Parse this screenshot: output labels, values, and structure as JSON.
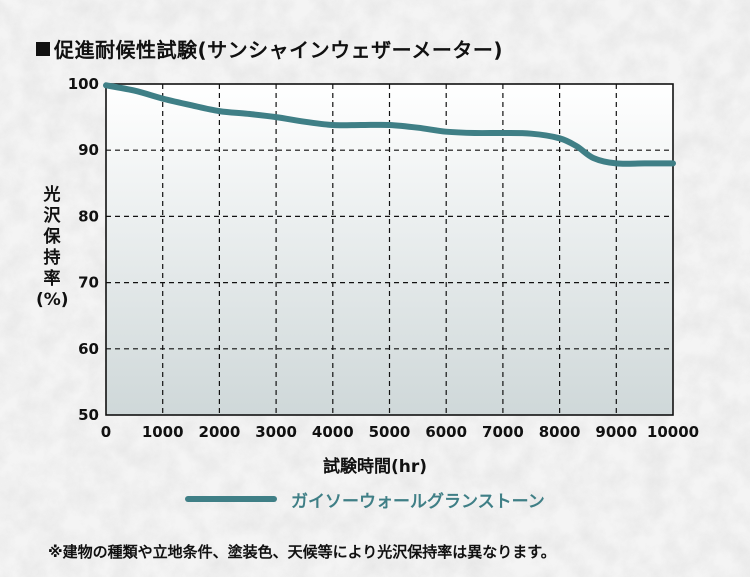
{
  "title": "促進耐候性試験(サンシャインウェザーメーター)",
  "chart_data": {
    "type": "line",
    "xlabel": "試験時間(hr)",
    "ylabel": [
      "光",
      "沢",
      "保",
      "持",
      "率",
      "(%)"
    ],
    "xlim": [
      0,
      10000
    ],
    "ylim": [
      50,
      100
    ],
    "x_ticks": [
      0,
      1000,
      2000,
      3000,
      4000,
      5000,
      6000,
      7000,
      8000,
      9000,
      10000
    ],
    "y_ticks": [
      50,
      60,
      70,
      80,
      90,
      100
    ],
    "grid": true,
    "legend_position": "bottom",
    "series": [
      {
        "name": "ガイソーウォールグランストーン",
        "color": "#3f7f86",
        "x": [
          0,
          500,
          1000,
          1500,
          2000,
          2500,
          3000,
          3500,
          4000,
          4500,
          5000,
          5500,
          6000,
          6500,
          7000,
          7500,
          8000,
          8300,
          8600,
          9000,
          9500,
          10000
        ],
        "y": [
          99.8,
          99.0,
          97.8,
          96.8,
          95.9,
          95.5,
          95.0,
          94.3,
          93.8,
          93.8,
          93.8,
          93.4,
          92.8,
          92.6,
          92.6,
          92.5,
          91.8,
          90.6,
          88.8,
          88.0,
          88.0,
          88.0
        ]
      }
    ]
  },
  "footnote": "※建物の種類や立地条件、塗装色、天候等により光沢保持率は異なります。"
}
